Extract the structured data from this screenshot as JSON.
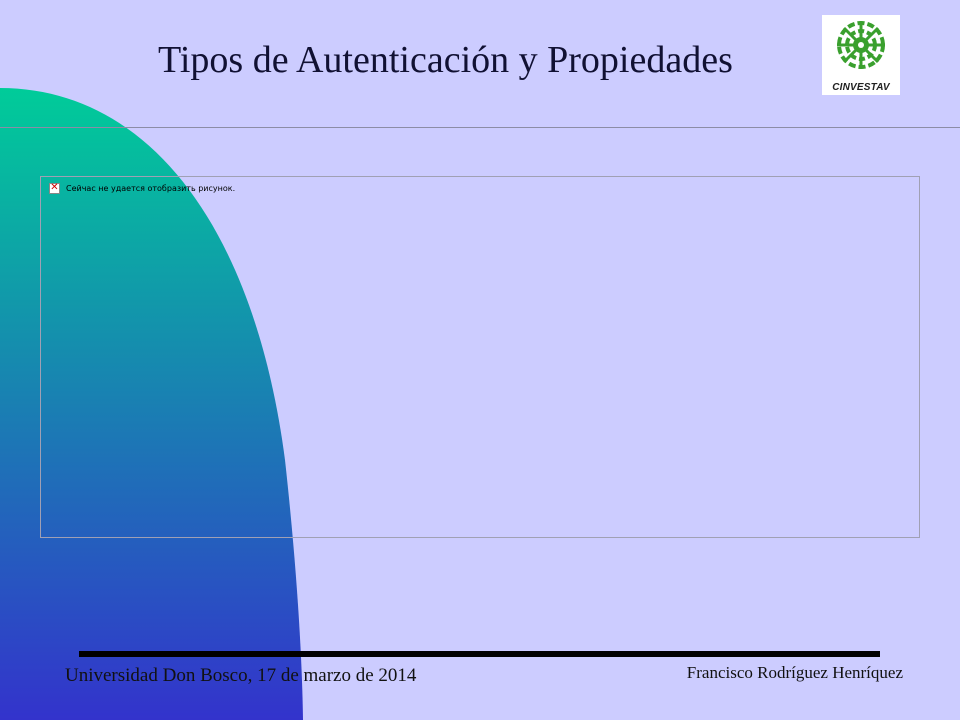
{
  "slide": {
    "title": "Tipos de Autenticación y Propiedades",
    "logo": {
      "icon": "cinvestav-logo-icon",
      "text": "CINVESTAV",
      "color": "#3aa02e"
    },
    "image_placeholder": {
      "icon": "broken-image-icon",
      "message": "Сейчас не удается отобразить рисунок."
    },
    "footer": {
      "left_text": "Universidad Don Bosco, 17 de marzo de 2014",
      "right_text": "Francisco Rodríguez Henríquez"
    },
    "colors": {
      "background": "#ccccff",
      "gradient_top": "#00cc99",
      "gradient_bottom": "#3333cc"
    }
  }
}
